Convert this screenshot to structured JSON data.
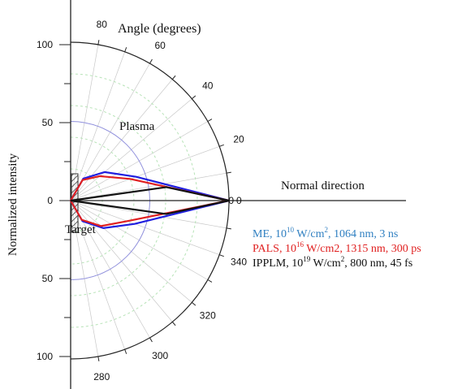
{
  "chart_data": {
    "type": "polar-line",
    "title": "Angle (degrees)",
    "ylabel": "Normalized intensity",
    "radial_range": [
      0,
      100
    ],
    "angular_range_deg": [
      270,
      90
    ],
    "y_ticks": [
      "100",
      "50",
      "0",
      "50",
      "100"
    ],
    "angle_tick_labels": [
      "80",
      "60",
      "40",
      "20",
      "0",
      "340",
      "320",
      "300",
      "280"
    ],
    "radial_tick_label": "0",
    "annotations": {
      "plasma": "Plasma",
      "target": "Target",
      "normal_direction": "Normal direction"
    },
    "legend": [
      {
        "text_html": "ME, 10<sup>10</sup> W/cm<sup>2</sup>, 1064 nm, 3 ns",
        "color": "#2f7fc1"
      },
      {
        "text_html": "PALS, 10<sup>16</sup> W/cm2, 1315 nm, 300 ps",
        "color": "#e02020"
      },
      {
        "text_html": "IPPLM, 10<sup>19</sup> W/cm<sup>2</sup>, 800 nm, 45 fs",
        "color": "#111111"
      }
    ],
    "series": [
      {
        "color": "#1f1fe0",
        "points": [
          {
            "angle": 90,
            "r": 0
          },
          {
            "angle": 60,
            "r": 16
          },
          {
            "angle": 40,
            "r": 28
          },
          {
            "angle": 20,
            "r": 44
          },
          {
            "angle": 0,
            "r": 100
          },
          {
            "angle": 340,
            "r": 43
          },
          {
            "angle": 320,
            "r": 27
          },
          {
            "angle": 300,
            "r": 15
          },
          {
            "angle": 270,
            "r": 0
          }
        ]
      },
      {
        "color": "#e02020",
        "points": [
          {
            "angle": 90,
            "r": 0
          },
          {
            "angle": 60,
            "r": 15
          },
          {
            "angle": 40,
            "r": 24
          },
          {
            "angle": 20,
            "r": 40
          },
          {
            "angle": 0,
            "r": 100
          },
          {
            "angle": 340,
            "r": 38
          },
          {
            "angle": 320,
            "r": 25
          },
          {
            "angle": 300,
            "r": 14
          },
          {
            "angle": 270,
            "r": 0
          }
        ]
      },
      {
        "color": "#111111",
        "points": [
          {
            "angle": 90,
            "r": 0
          },
          {
            "angle": 8,
            "r": 61
          },
          {
            "angle": 0,
            "r": 100
          },
          {
            "angle": 352,
            "r": 61
          },
          {
            "angle": 270,
            "r": 0
          }
        ]
      }
    ],
    "grid": true
  }
}
